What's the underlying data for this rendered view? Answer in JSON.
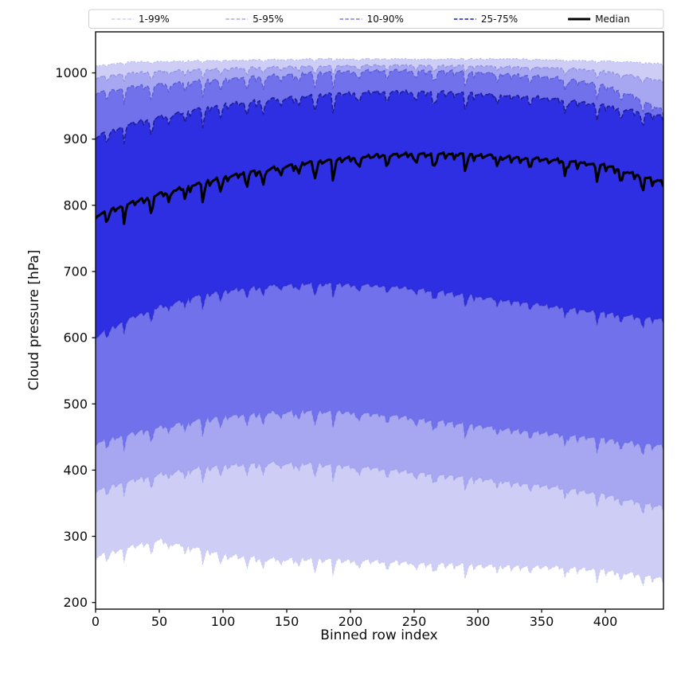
{
  "chart_data": {
    "type": "area",
    "title": "",
    "xlabel": "Binned row index",
    "ylabel": "Cloud pressure [hPa]",
    "xlim": [
      0,
      445.6
    ],
    "ylim": [
      190,
      1062
    ],
    "xticks": [
      0,
      50,
      100,
      150,
      200,
      250,
      300,
      350,
      400
    ],
    "yticks": [
      200,
      300,
      400,
      500,
      600,
      700,
      800,
      900,
      1000
    ],
    "grid": false,
    "legend": {
      "position": "top",
      "entries": [
        {
          "label": "1-99%",
          "color": "#c7c7ef",
          "style": "dashed",
          "width": 1.3
        },
        {
          "label": "5-95%",
          "color": "#a9a9ea",
          "style": "dashed",
          "width": 1.4
        },
        {
          "label": "10-90%",
          "color": "#7d7de8",
          "style": "dashed",
          "width": 1.6
        },
        {
          "label": "25-75%",
          "color": "#5353d9",
          "style": "dashed",
          "width": 2.0
        },
        {
          "label": "Median",
          "color": "#000000",
          "style": "solid",
          "width": 3.0
        }
      ]
    },
    "control_x": [
      0,
      25,
      50,
      75,
      100,
      125,
      150,
      175,
      200,
      225,
      250,
      275,
      300,
      325,
      350,
      375,
      400,
      425,
      446
    ],
    "series": [
      {
        "name": "p1",
        "values": [
          268,
          282,
          293,
          283,
          271,
          267,
          265,
          264,
          263,
          261,
          259,
          257,
          255,
          254,
          253,
          251,
          248,
          242,
          234
        ]
      },
      {
        "name": "p5",
        "values": [
          368,
          382,
          393,
          400,
          406,
          409,
          410,
          408,
          405,
          401,
          396,
          391,
          386,
          381,
          376,
          370,
          362,
          352,
          343
        ]
      },
      {
        "name": "p10",
        "values": [
          440,
          453,
          464,
          473,
          480,
          485,
          488,
          488,
          487,
          483,
          478,
          472,
          466,
          461,
          456,
          451,
          446,
          440,
          436
        ]
      },
      {
        "name": "p25",
        "values": [
          601,
          627,
          646,
          660,
          670,
          676,
          680,
          681,
          680,
          678,
          674,
          668,
          661,
          655,
          649,
          643,
          637,
          631,
          626
        ]
      },
      {
        "name": "median",
        "values": [
          783,
          801,
          816,
          829,
          841,
          851,
          859,
          866,
          871,
          875,
          877,
          877,
          875,
          872,
          869,
          865,
          860,
          845,
          834
        ]
      },
      {
        "name": "p75",
        "values": [
          903,
          921,
          933,
          943,
          951,
          957,
          962,
          966,
          969,
          971,
          971,
          970,
          967,
          965,
          962,
          957,
          950,
          941,
          933
        ]
      },
      {
        "name": "p90",
        "values": [
          969,
          977,
          982,
          986,
          990,
          994,
          997,
          1000,
          1002,
          1003,
          1003,
          1002,
          1000,
          997,
          994,
          989,
          980,
          963,
          941
        ]
      },
      {
        "name": "p95",
        "values": [
          993,
          999,
          1002,
          1004,
          1006,
          1008,
          1009,
          1010,
          1011,
          1011,
          1011,
          1011,
          1010,
          1009,
          1008,
          1006,
          1002,
          995,
          987
        ]
      },
      {
        "name": "p99",
        "values": [
          1010,
          1016,
          1017,
          1018,
          1019,
          1020,
          1020,
          1021,
          1021,
          1021,
          1021,
          1021,
          1021,
          1021,
          1020,
          1019,
          1018,
          1016,
          1013
        ]
      }
    ],
    "bands": [
      {
        "label": "1-99%",
        "lower": "p1",
        "upper": "p99",
        "fill": "#cdcdf6",
        "edge": "#b5b5ea",
        "dash": "2 2.4",
        "width": 1.1,
        "lower_edge_opacity": 0.45
      },
      {
        "label": "5-95%",
        "lower": "p5",
        "upper": "p95",
        "fill": "#a6a6f1",
        "edge": "#8f8fe2",
        "dash": "4 2.4",
        "width": 1.2,
        "lower_edge_opacity": 0.4
      },
      {
        "label": "10-90%",
        "lower": "p10",
        "upper": "p90",
        "fill": "#7171eb",
        "edge": "#5c5cd8",
        "dash": "5 2.6",
        "width": 1.4,
        "lower_edge_opacity": 0.35
      },
      {
        "label": "25-75%",
        "lower": "p25",
        "upper": "p75",
        "fill": "#2e2ee2",
        "edge": "#1f1f99",
        "dash": "6 2.8",
        "width": 1.7,
        "lower_edge_opacity": 0.3
      }
    ],
    "median_line": {
      "series": "median",
      "color": "#000000",
      "width": 3.0
    },
    "texture": {
      "note": "curves are jagged: small sawtooth wiggles plus sharp downward spikes shared across all percentile curves",
      "saw_period": 7.4,
      "saw_amp": [
        8,
        7,
        7,
        6,
        6,
        6,
        5.5,
        3,
        1.6
      ],
      "dip_scale": [
        0.75,
        0.75,
        0.8,
        0.7,
        1.0,
        0.95,
        0.85,
        0.45,
        0.12
      ],
      "series_order": [
        "p1",
        "p5",
        "p10",
        "p25",
        "median",
        "p75",
        "p90",
        "p95",
        "p99"
      ],
      "big_dip_depth": 30,
      "big_dips": [
        {
          "x": 9,
          "s": 0.45
        },
        {
          "x": 22,
          "s": 0.5
        },
        {
          "x": 43,
          "s": 1.0
        },
        {
          "x": 57,
          "s": 0.6
        },
        {
          "x": 70,
          "s": 0.55
        },
        {
          "x": 84,
          "s": 0.95
        },
        {
          "x": 98,
          "s": 0.6
        },
        {
          "x": 118,
          "s": 0.7
        },
        {
          "x": 131,
          "s": 1.0
        },
        {
          "x": 145,
          "s": 0.55
        },
        {
          "x": 159,
          "s": 0.6
        },
        {
          "x": 172,
          "s": 0.85
        },
        {
          "x": 186,
          "s": 1.0
        },
        {
          "x": 205,
          "s": 0.55
        },
        {
          "x": 228,
          "s": 0.6
        },
        {
          "x": 250,
          "s": 0.5
        },
        {
          "x": 265,
          "s": 0.9
        },
        {
          "x": 290,
          "s": 0.85
        },
        {
          "x": 315,
          "s": 0.5
        },
        {
          "x": 340,
          "s": 0.55
        },
        {
          "x": 368,
          "s": 0.8
        },
        {
          "x": 393,
          "s": 0.9
        },
        {
          "x": 412,
          "s": 0.75
        },
        {
          "x": 428,
          "s": 0.65
        }
      ]
    },
    "colors": {
      "background": "#ffffff",
      "axis": "#0a0a0a",
      "legend_border": "#cfcfcf"
    }
  }
}
